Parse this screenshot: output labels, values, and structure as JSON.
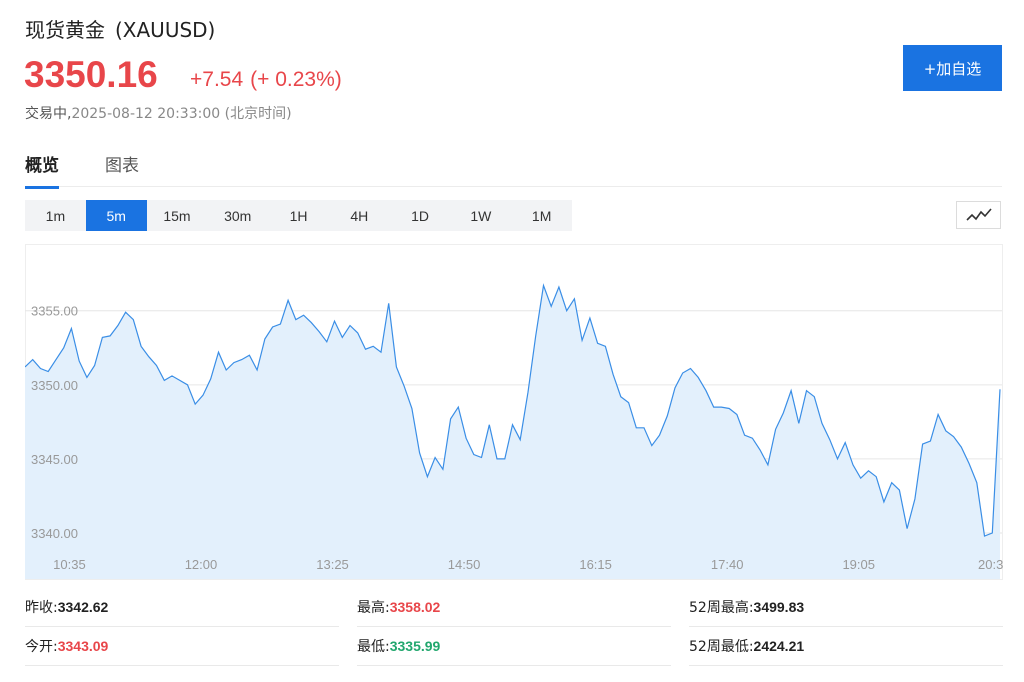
{
  "header": {
    "name": "现货黄金",
    "code": "(XAUUSD)",
    "price": "3350.16",
    "change": "+7.54",
    "change_pct": "(+ 0.23%)",
    "status_label": "交易中,",
    "timestamp": "2025-08-12 20:33:00",
    "timezone": "(北京时间)",
    "add_watchlist_label": "+加自选"
  },
  "tabs": [
    {
      "label": "概览",
      "active": true
    },
    {
      "label": "图表",
      "active": false
    }
  ],
  "periods": [
    {
      "label": "1m",
      "active": false
    },
    {
      "label": "5m",
      "active": true
    },
    {
      "label": "15m",
      "active": false
    },
    {
      "label": "30m",
      "active": false
    },
    {
      "label": "1H",
      "active": false
    },
    {
      "label": "4H",
      "active": false
    },
    {
      "label": "1D",
      "active": false
    },
    {
      "label": "1W",
      "active": false
    },
    {
      "label": "1M",
      "active": false
    }
  ],
  "chart_type_icon": "line-chart-icon",
  "colors": {
    "up": "#e8464a",
    "down": "#22a76e",
    "accent": "#1a73e1",
    "line": "#3a8ee6",
    "area": "#e3f0fc"
  },
  "chart_data": {
    "type": "area",
    "y_ticks": [
      "3355.00",
      "3350.00",
      "3345.00",
      "3340.00"
    ],
    "y_tick_values": [
      3355,
      3350,
      3345,
      3340
    ],
    "ylim": [
      3336.9,
      3359.5
    ],
    "x_ticks": [
      "10:35",
      "12:00",
      "13:25",
      "14:50",
      "16:15",
      "17:40",
      "19:05",
      "20:3"
    ],
    "x_tick_index": [
      6,
      23,
      40,
      57,
      74,
      91,
      108,
      125
    ],
    "grid": true,
    "legend": "none",
    "values": [
      3351.2,
      3351.7,
      3351.1,
      3350.9,
      3351.7,
      3352.5,
      3353.8,
      3351.6,
      3350.5,
      3351.3,
      3353.2,
      3353.3,
      3354.0,
      3354.9,
      3354.4,
      3352.6,
      3351.9,
      3351.3,
      3350.3,
      3350.6,
      3350.3,
      3350.0,
      3348.7,
      3349.3,
      3350.4,
      3352.2,
      3351.0,
      3351.5,
      3351.7,
      3352.0,
      3351.0,
      3353.1,
      3353.9,
      3354.1,
      3355.7,
      3354.4,
      3354.7,
      3354.2,
      3353.6,
      3352.9,
      3354.3,
      3353.2,
      3354.0,
      3353.5,
      3352.4,
      3352.6,
      3352.2,
      3355.5,
      3351.2,
      3349.9,
      3348.4,
      3345.4,
      3343.8,
      3345.1,
      3344.3,
      3347.7,
      3348.5,
      3346.4,
      3345.3,
      3345.1,
      3347.3,
      3345.0,
      3345.0,
      3347.3,
      3346.3,
      3349.5,
      3353.3,
      3356.7,
      3355.3,
      3356.6,
      3355.0,
      3355.8,
      3353.0,
      3354.5,
      3352.8,
      3352.6,
      3350.7,
      3349.2,
      3348.8,
      3347.1,
      3347.1,
      3345.9,
      3346.6,
      3347.9,
      3349.8,
      3350.8,
      3351.1,
      3350.5,
      3349.6,
      3348.5,
      3348.5,
      3348.4,
      3348.0,
      3346.6,
      3346.4,
      3345.6,
      3344.6,
      3347.0,
      3348.1,
      3349.6,
      3347.4,
      3349.6,
      3349.2,
      3347.4,
      3346.3,
      3345.0,
      3346.1,
      3344.6,
      3343.7,
      3344.2,
      3343.8,
      3342.1,
      3343.4,
      3342.9,
      3340.3,
      3342.3,
      3346.0,
      3346.2,
      3348.0,
      3346.9,
      3346.5,
      3345.8,
      3344.7,
      3343.4,
      3339.8,
      3340.0,
      3349.7
    ]
  },
  "stats": {
    "prev_close_label": "昨收:",
    "prev_close": "3342.62",
    "high_label": "最高:",
    "high": "3358.02",
    "high52_label": "52周最高:",
    "high52": "3499.83",
    "open_label": "今开:",
    "open": "3343.09",
    "low_label": "最低:",
    "low": "3335.99",
    "low52_label": "52周最低:",
    "low52": "2424.21"
  }
}
